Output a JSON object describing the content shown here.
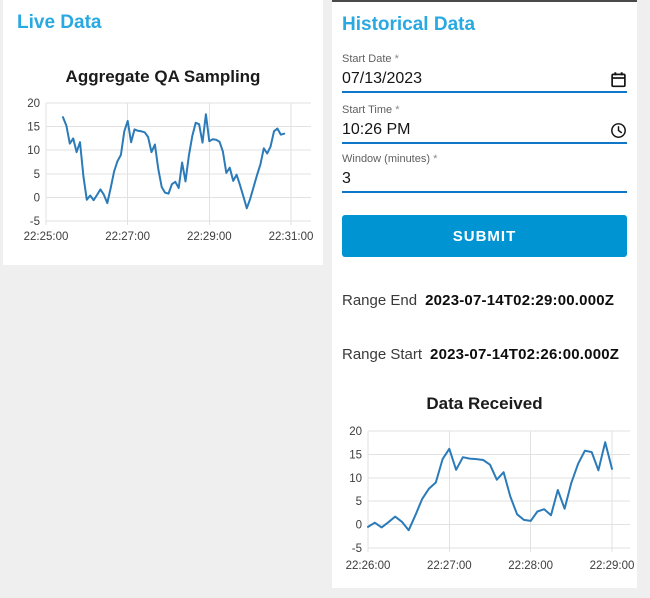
{
  "colors": {
    "heading_accent": "#29a9e1",
    "submit_button": "#0095d2",
    "input_underline": "#1077c8",
    "chart_line": "#2b7bb9",
    "grid_line": "#e2e2e2",
    "page_background": "#efefef"
  },
  "live_panel": {
    "title": "Live Data"
  },
  "historical_panel": {
    "title": "Historical Data",
    "fields": [
      {
        "label": "Start Date",
        "required_marker": "*",
        "value": "07/13/2023",
        "icon": "calendar-icon"
      },
      {
        "label": "Start Time",
        "required_marker": "*",
        "value": "10:26 PM",
        "icon": "clock-icon"
      },
      {
        "label": "Window (minutes)",
        "required_marker": "*",
        "value": "3",
        "icon": ""
      }
    ],
    "submit_label": "SUBMIT",
    "results": [
      {
        "label": "Range End",
        "value": "2023-07-14T02:29:00.000Z"
      },
      {
        "label": "Range Start",
        "value": "2023-07-14T02:26:00.000Z"
      }
    ]
  },
  "chart_data": [
    {
      "id": "live",
      "type": "line",
      "title": "Aggregate QA Sampling",
      "xlabel": "",
      "ylabel": "",
      "x_range": [
        "22:25:00",
        "22:31:00"
      ],
      "x_ticks": [
        "22:25:00",
        "22:27:00",
        "22:29:00",
        "22:31:00"
      ],
      "ylim": [
        -5,
        20
      ],
      "y_ticks": [
        -5,
        0,
        5,
        10,
        15,
        20
      ],
      "grid": true,
      "legend": false,
      "start_time": "22:25:25",
      "interval_seconds": 5,
      "values": [
        17.0,
        15.2,
        11.4,
        12.5,
        9.6,
        11.7,
        4.5,
        -0.5,
        0.4,
        -0.6,
        0.5,
        1.7,
        0.6,
        -1.2,
        2.0,
        5.5,
        7.7,
        9.0,
        14.0,
        16.2,
        11.7,
        14.4,
        14.1,
        14.0,
        13.8,
        12.8,
        9.6,
        11.2,
        6.0,
        2.2,
        1.0,
        0.8,
        2.8,
        3.3,
        2.0,
        7.4,
        3.4,
        8.9,
        13.0,
        15.8,
        15.5,
        11.6,
        17.6,
        11.9,
        12.3,
        12.2,
        11.8,
        9.7,
        5.2,
        6.3,
        3.5,
        4.8,
        2.6,
        0.2,
        -2.3,
        -0.3,
        2.2,
        4.7,
        7.0,
        10.4,
        9.3,
        10.8,
        14.0,
        14.6,
        13.3,
        13.5
      ]
    },
    {
      "id": "hist",
      "type": "line",
      "title": "Data Received",
      "xlabel": "",
      "ylabel": "",
      "x_range": [
        "22:26:00",
        "22:29:00"
      ],
      "x_ticks": [
        "22:26:00",
        "22:27:00",
        "22:28:00",
        "22:29:00"
      ],
      "ylim": [
        -5,
        20
      ],
      "y_ticks": [
        -5,
        0,
        5,
        10,
        15,
        20
      ],
      "grid": true,
      "legend": false,
      "start_time": "22:26:00",
      "interval_seconds": 5,
      "values": [
        -0.5,
        0.4,
        -0.6,
        0.5,
        1.7,
        0.6,
        -1.2,
        2.0,
        5.5,
        7.7,
        9.0,
        14.0,
        16.2,
        11.7,
        14.4,
        14.1,
        14.0,
        13.8,
        12.8,
        9.6,
        11.2,
        6.0,
        2.2,
        1.0,
        0.8,
        2.8,
        3.3,
        2.0,
        7.4,
        3.4,
        8.9,
        13.0,
        15.8,
        15.5,
        11.6,
        17.6,
        11.9
      ]
    }
  ]
}
